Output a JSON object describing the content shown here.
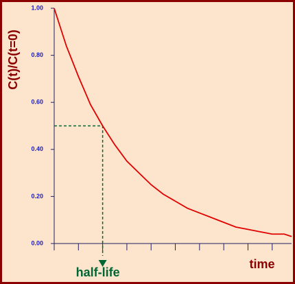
{
  "chart_data": {
    "type": "line",
    "y_label": "C(t)/C(t=0)",
    "x_label": "time",
    "x": [
      0,
      0.5,
      1,
      1.5,
      2,
      2.5,
      3,
      3.5,
      4,
      4.5,
      5,
      5.5,
      6,
      6.5,
      7,
      7.5,
      8,
      8.5,
      9,
      9.5,
      9.8
    ],
    "values": [
      1.0,
      0.84,
      0.71,
      0.59,
      0.5,
      0.42,
      0.35,
      0.3,
      0.25,
      0.21,
      0.18,
      0.15,
      0.13,
      0.11,
      0.09,
      0.07,
      0.06,
      0.05,
      0.04,
      0.04,
      0.03
    ],
    "color": "#e00000",
    "xlim": [
      0,
      9.8
    ],
    "xticks": [
      0,
      1,
      2,
      3,
      4,
      5,
      6,
      7,
      8,
      9
    ],
    "ylim": [
      0,
      1
    ],
    "yticks": [
      {
        "value": 0,
        "label": "0.00"
      },
      {
        "value": 0.2,
        "label": "0.20"
      },
      {
        "value": 0.4,
        "label": "0.40"
      },
      {
        "value": 0.6,
        "label": "0.60"
      },
      {
        "value": 0.8,
        "label": "0.80"
      },
      {
        "value": 1,
        "label": "1.00"
      }
    ],
    "half_life": {
      "x": 2,
      "y": 0.5,
      "label": "half-life",
      "color": "#006633"
    }
  }
}
